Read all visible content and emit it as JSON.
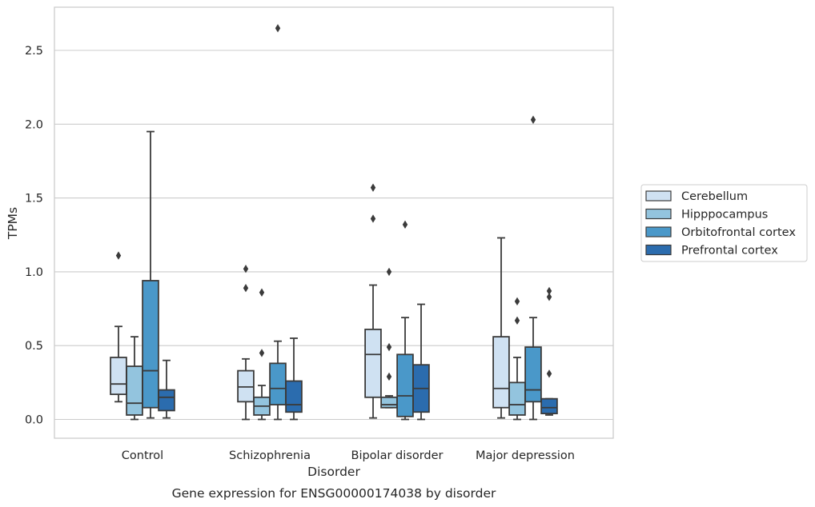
{
  "chart_data": {
    "type": "boxplot",
    "title": "Gene expression for ENSG00000174038 by disorder",
    "xlabel": "Disorder",
    "ylabel": "TPMs",
    "ylim": [
      -0.13,
      2.8
    ],
    "yticks": [
      "0.0",
      "0.5",
      "1.0",
      "1.5",
      "2.0",
      "2.5"
    ],
    "grid": true,
    "legend_position": "right",
    "categories": [
      "Control",
      "Schizophrenia",
      "Bipolar disorder",
      "Major depression"
    ],
    "series": [
      {
        "name": "Cerebellum",
        "color": "#cfe1f2",
        "boxes": [
          {
            "whislo": 0.12,
            "q1": 0.17,
            "med": 0.24,
            "q3": 0.42,
            "whishi": 0.63,
            "fliers": [
              1.11
            ]
          },
          {
            "whislo": 0.0,
            "q1": 0.12,
            "med": 0.22,
            "q3": 0.33,
            "whishi": 0.41,
            "fliers": [
              0.89,
              1.02
            ]
          },
          {
            "whislo": 0.01,
            "q1": 0.15,
            "med": 0.44,
            "q3": 0.61,
            "whishi": 0.91,
            "fliers": [
              1.36,
              1.57
            ]
          },
          {
            "whislo": 0.01,
            "q1": 0.08,
            "med": 0.21,
            "q3": 0.56,
            "whishi": 1.23,
            "fliers": []
          }
        ]
      },
      {
        "name": "Hipppocampus",
        "color": "#93c4de",
        "boxes": [
          {
            "whislo": 0.0,
            "q1": 0.03,
            "med": 0.11,
            "q3": 0.36,
            "whishi": 0.56,
            "fliers": []
          },
          {
            "whislo": 0.0,
            "q1": 0.03,
            "med": 0.09,
            "q3": 0.15,
            "whishi": 0.23,
            "fliers": [
              0.45,
              0.86
            ]
          },
          {
            "whislo": 0.08,
            "q1": 0.08,
            "med": 0.1,
            "q3": 0.15,
            "whishi": 0.16,
            "fliers": [
              0.29,
              0.49,
              1.0
            ]
          },
          {
            "whislo": 0.0,
            "q1": 0.03,
            "med": 0.1,
            "q3": 0.25,
            "whishi": 0.42,
            "fliers": [
              0.67,
              0.8
            ]
          }
        ]
      },
      {
        "name": "Orbitofrontal cortex",
        "color": "#4a98c9",
        "boxes": [
          {
            "whislo": 0.01,
            "q1": 0.08,
            "med": 0.33,
            "q3": 0.94,
            "whishi": 1.95,
            "fliers": []
          },
          {
            "whislo": 0.0,
            "q1": 0.1,
            "med": 0.21,
            "q3": 0.38,
            "whishi": 0.53,
            "fliers": [
              2.65
            ]
          },
          {
            "whislo": 0.0,
            "q1": 0.02,
            "med": 0.16,
            "q3": 0.44,
            "whishi": 0.69,
            "fliers": [
              1.32
            ]
          },
          {
            "whislo": 0.0,
            "q1": 0.12,
            "med": 0.2,
            "q3": 0.49,
            "whishi": 0.69,
            "fliers": [
              2.03
            ]
          }
        ]
      },
      {
        "name": "Prefrontal cortex",
        "color": "#2b6cae",
        "boxes": [
          {
            "whislo": 0.01,
            "q1": 0.06,
            "med": 0.15,
            "q3": 0.2,
            "whishi": 0.4,
            "fliers": []
          },
          {
            "whislo": 0.0,
            "q1": 0.05,
            "med": 0.1,
            "q3": 0.26,
            "whishi": 0.55,
            "fliers": []
          },
          {
            "whislo": 0.0,
            "q1": 0.05,
            "med": 0.21,
            "q3": 0.37,
            "whishi": 0.78,
            "fliers": []
          },
          {
            "whislo": 0.03,
            "q1": 0.04,
            "med": 0.08,
            "q3": 0.14,
            "whishi": 0.14,
            "fliers": [
              0.31,
              0.83,
              0.87
            ]
          }
        ]
      }
    ]
  }
}
